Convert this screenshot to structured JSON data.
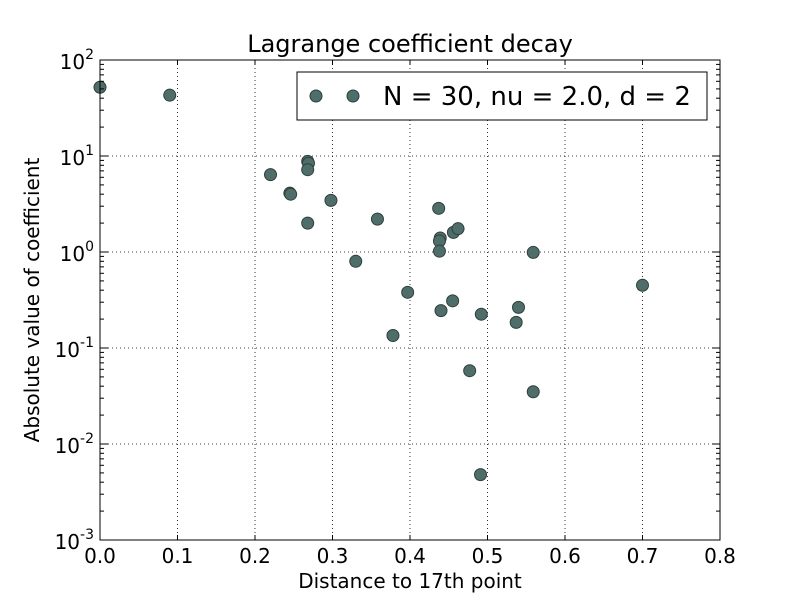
{
  "chart_data": {
    "type": "scatter",
    "title": "Lagrange coefficient decay",
    "xlabel": "Distance to 17th point",
    "ylabel": "Absolute value of coefficient",
    "xlim": [
      0.0,
      0.8
    ],
    "ylim": [
      0.001,
      100
    ],
    "yscale": "log",
    "grid": true,
    "legend_position": "top-right",
    "marker_color": "#4f6e6a",
    "x_ticks": [
      "0.0",
      "0.1",
      "0.2",
      "0.3",
      "0.4",
      "0.5",
      "0.6",
      "0.7",
      "0.8"
    ],
    "y_ticks": [
      {
        "base": "10",
        "exp": "2"
      },
      {
        "base": "10",
        "exp": "1"
      },
      {
        "base": "10",
        "exp": "0"
      },
      {
        "base": "10",
        "exp": "-1"
      },
      {
        "base": "10",
        "exp": "-2"
      },
      {
        "base": "10",
        "exp": "-3"
      }
    ],
    "series": [
      {
        "name": "N = 30, nu = 2.0, d = 2",
        "points": [
          {
            "x": 0.0,
            "y": 52
          },
          {
            "x": 0.09,
            "y": 43
          },
          {
            "x": 0.22,
            "y": 6.4
          },
          {
            "x": 0.245,
            "y": 4.1
          },
          {
            "x": 0.246,
            "y": 4.0
          },
          {
            "x": 0.268,
            "y": 8.8
          },
          {
            "x": 0.269,
            "y": 8.4
          },
          {
            "x": 0.268,
            "y": 7.2
          },
          {
            "x": 0.268,
            "y": 2.0
          },
          {
            "x": 0.298,
            "y": 3.45
          },
          {
            "x": 0.33,
            "y": 0.8
          },
          {
            "x": 0.358,
            "y": 2.2
          },
          {
            "x": 0.378,
            "y": 0.135
          },
          {
            "x": 0.397,
            "y": 0.38
          },
          {
            "x": 0.437,
            "y": 2.85
          },
          {
            "x": 0.439,
            "y": 1.4
          },
          {
            "x": 0.438,
            "y": 1.3
          },
          {
            "x": 0.438,
            "y": 1.02
          },
          {
            "x": 0.44,
            "y": 0.245
          },
          {
            "x": 0.456,
            "y": 1.6
          },
          {
            "x": 0.462,
            "y": 1.75
          },
          {
            "x": 0.455,
            "y": 0.31
          },
          {
            "x": 0.477,
            "y": 0.058
          },
          {
            "x": 0.492,
            "y": 0.225
          },
          {
            "x": 0.491,
            "y": 0.0048
          },
          {
            "x": 0.537,
            "y": 0.185
          },
          {
            "x": 0.54,
            "y": 0.265
          },
          {
            "x": 0.559,
            "y": 0.99
          },
          {
            "x": 0.559,
            "y": 0.035
          },
          {
            "x": 0.7,
            "y": 0.45
          }
        ]
      }
    ]
  }
}
